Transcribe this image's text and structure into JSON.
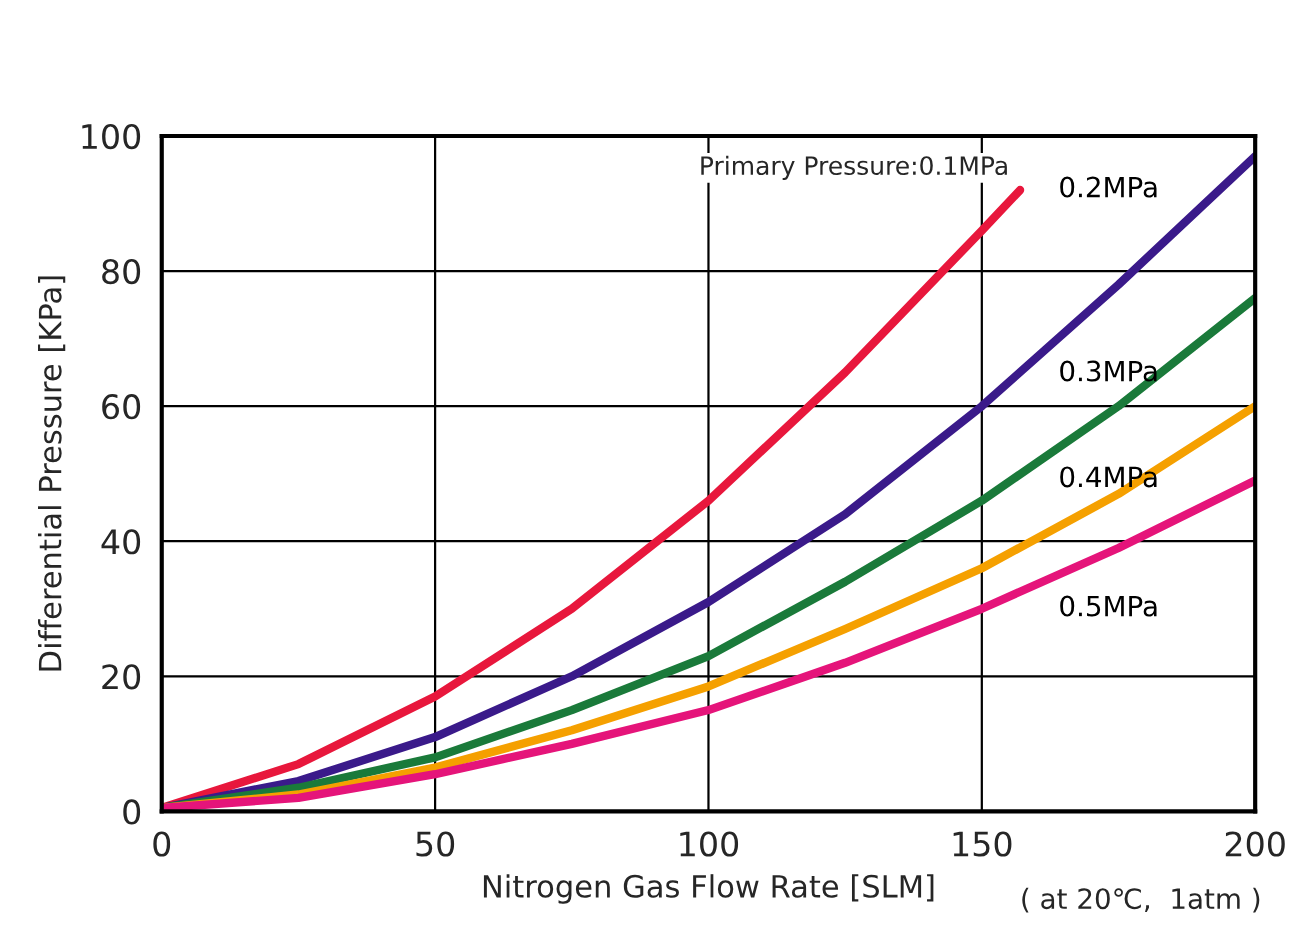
{
  "chart_data": {
    "type": "line",
    "xlabel": "Nitrogen Gas Flow Rate [SLM]",
    "ylabel": "Differential Pressure [KPa]",
    "annotations": [
      "( at 20℃,  1atm )"
    ],
    "xlim": [
      0,
      200
    ],
    "xticks": [
      0,
      50,
      100,
      150,
      200
    ],
    "ylim": [
      0,
      100
    ],
    "yticks": [
      0,
      20,
      40,
      60,
      80,
      100
    ],
    "grid": true,
    "legend": false,
    "marker": "none",
    "line_style": "solid",
    "series": [
      {
        "name": "Primary Pressure:0.1MPa",
        "color": "#e8173c",
        "x": [
          0,
          25,
          50,
          75,
          100,
          125,
          150,
          157
        ],
        "values": [
          0.5,
          7,
          17,
          30,
          46,
          65,
          86,
          92
        ]
      },
      {
        "name": "0.2MPa",
        "color": "#3a1a8a",
        "x": [
          0,
          25,
          50,
          75,
          100,
          125,
          150,
          175,
          200
        ],
        "values": [
          0.5,
          4.5,
          11,
          20,
          31,
          44,
          60,
          78,
          97
        ]
      },
      {
        "name": "0.3MPa",
        "color": "#1a7a3a",
        "x": [
          0,
          25,
          50,
          75,
          100,
          125,
          150,
          175,
          200
        ],
        "values": [
          0.5,
          3.5,
          8,
          15,
          23,
          34,
          46,
          60,
          76
        ]
      },
      {
        "name": "0.4MPa",
        "color": "#f5a000",
        "x": [
          0,
          25,
          50,
          75,
          100,
          125,
          150,
          175,
          200
        ],
        "values": [
          0.5,
          2.5,
          6.5,
          12,
          18.5,
          27,
          36,
          47,
          60
        ]
      },
      {
        "name": "0.5MPa",
        "color": "#e5147a",
        "x": [
          0,
          25,
          50,
          75,
          100,
          125,
          150,
          175,
          200
        ],
        "values": [
          0.5,
          2,
          5.5,
          10,
          15,
          22,
          30,
          39,
          49
        ]
      }
    ]
  }
}
